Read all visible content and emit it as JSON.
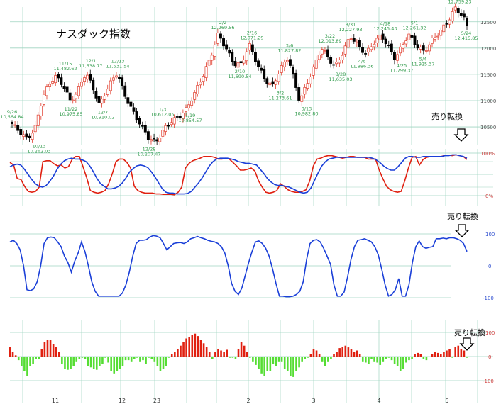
{
  "title": "ナスダック指数",
  "signals": {
    "panel1": "売り転換",
    "panel2": "売り転換",
    "panel3": "売り転換"
  },
  "colors": {
    "up": "#e03a2a",
    "down": "#000000",
    "red_line": "#e02010",
    "blue_line": "#1a3fd8",
    "grid": "#9fd4c0",
    "annotation": "#2f9a4a",
    "bar_pos": "#e02010",
    "bar_neg": "#55dd33"
  },
  "x_axis_labels": [
    "11",
    "12",
    "23",
    "2",
    "3",
    "4",
    "5"
  ],
  "chart_data": [
    {
      "type": "candlestick",
      "title": "ナスダック指数",
      "yticks": [
        12500,
        12000,
        11500,
        11000,
        10500
      ],
      "ylim": [
        10150,
        12780
      ],
      "annotations": [
        {
          "date": "9/26",
          "value": "10,564.84"
        },
        {
          "date": "10/13",
          "value": "10,262.03"
        },
        {
          "date": "11/15",
          "value": "11,482.62"
        },
        {
          "date": "11/22",
          "value": "10,975.85"
        },
        {
          "date": "12/1",
          "value": "11,538.77"
        },
        {
          "date": "12/7",
          "value": "10,910.02"
        },
        {
          "date": "12/13",
          "value": "11,531.54"
        },
        {
          "date": "12/28",
          "value": "10,207.47"
        },
        {
          "date": "1/3",
          "value": "10,612.05"
        },
        {
          "date": "1/19",
          "value": "10,854.57"
        },
        {
          "date": "2/2",
          "value": "12,269.56"
        },
        {
          "date": "2/16",
          "value": "12,071.29"
        },
        {
          "date": "2/10",
          "value": "11,690.54"
        },
        {
          "date": "3/6",
          "value": "11,827.82"
        },
        {
          "date": "3/2",
          "value": "11,273.61"
        },
        {
          "date": "3/13",
          "value": "10,982.80"
        },
        {
          "date": "3/22",
          "value": "12,013.89"
        },
        {
          "date": "3/28",
          "value": "11,635.03"
        },
        {
          "date": "3/31",
          "value": "12,227.93"
        },
        {
          "date": "4/6",
          "value": "11,886.36"
        },
        {
          "date": "4/18",
          "value": "12,245.43"
        },
        {
          "date": "4/25",
          "value": "11,799.37"
        },
        {
          "date": "5/1",
          "value": "12,261.32"
        },
        {
          "date": "5/4",
          "value": "11,925.37"
        },
        {
          "date": "5/22",
          "value": "12,759.23"
        },
        {
          "date": "5/24",
          "value": "12,415.85"
        }
      ]
    },
    {
      "type": "line",
      "yticks": [
        "100%",
        "0%"
      ],
      "ylim": [
        0,
        100
      ],
      "series": [
        {
          "color": "#e02010",
          "values": [
            78,
            72,
            40,
            38,
            22,
            10,
            8,
            10,
            20,
            80,
            82,
            82,
            75,
            70,
            72,
            65,
            68,
            85,
            92,
            92,
            68,
            42,
            12,
            8,
            6,
            8,
            12,
            28,
            52,
            80,
            86,
            86,
            78,
            65,
            22,
            12,
            8,
            6,
            6,
            6,
            4,
            4,
            3,
            3,
            3,
            2,
            8,
            20,
            65,
            76,
            82,
            85,
            88,
            92,
            92,
            92,
            90,
            86,
            86,
            88,
            86,
            78,
            70,
            60,
            60,
            62,
            65,
            58,
            35,
            20,
            8,
            6,
            8,
            12,
            28,
            22,
            14,
            10,
            8,
            8,
            10,
            14,
            35,
            70,
            86,
            88,
            92,
            94,
            94,
            92,
            90,
            88,
            90,
            92,
            92,
            90,
            90,
            90,
            86,
            86,
            86,
            60,
            40,
            22,
            14,
            10,
            8,
            10,
            35,
            65,
            90,
            92,
            72,
            85,
            90,
            92,
            92,
            92,
            92,
            95,
            95,
            94,
            96,
            94,
            92,
            85
          ]
        },
        {
          "color": "#1a3fd8",
          "values": [
            68,
            72,
            74,
            72,
            62,
            50,
            38,
            28,
            22,
            20,
            24,
            34,
            46,
            62,
            74,
            82,
            86,
            88,
            86,
            86,
            84,
            80,
            70,
            56,
            40,
            28,
            22,
            16,
            16,
            18,
            22,
            30,
            42,
            56,
            64,
            70,
            72,
            70,
            66,
            56,
            44,
            30,
            16,
            8,
            6,
            6,
            4,
            4,
            4,
            5,
            10,
            20,
            30,
            42,
            56,
            70,
            80,
            86,
            88,
            88,
            88,
            86,
            84,
            80,
            78,
            76,
            76,
            74,
            72,
            62,
            52,
            40,
            32,
            26,
            24,
            24,
            22,
            20,
            16,
            12,
            8,
            6,
            8,
            18,
            36,
            54,
            70,
            80,
            86,
            88,
            90,
            90,
            90,
            90,
            90,
            90,
            90,
            90,
            90,
            90,
            88,
            84,
            78,
            70,
            64,
            60,
            60,
            68,
            78,
            88,
            92,
            92,
            90,
            90,
            92,
            92,
            92,
            92,
            92,
            92,
            94,
            94,
            96,
            96,
            94,
            92,
            88
          ]
        }
      ]
    },
    {
      "type": "line",
      "yticks": [
        100,
        0,
        -100
      ],
      "ylim": [
        -100,
        100
      ],
      "series": [
        {
          "color": "#1a3fd8",
          "values": [
            75,
            80,
            70,
            50,
            0,
            -75,
            -78,
            -72,
            -50,
            0,
            70,
            88,
            90,
            88,
            75,
            60,
            30,
            10,
            -20,
            15,
            40,
            75,
            45,
            0,
            -50,
            -80,
            -95,
            -95,
            -95,
            -95,
            -95,
            -95,
            -95,
            -85,
            -60,
            -20,
            30,
            70,
            80,
            80,
            82,
            90,
            95,
            93,
            88,
            70,
            50,
            60,
            70,
            72,
            73,
            70,
            75,
            85,
            88,
            92,
            88,
            85,
            80,
            77,
            75,
            70,
            60,
            40,
            0,
            -55,
            -80,
            -90,
            -70,
            -30,
            10,
            45,
            75,
            78,
            70,
            55,
            30,
            -10,
            -55,
            -95,
            -95,
            -97,
            -97,
            -95,
            -90,
            -80,
            -50,
            20,
            70,
            80,
            82,
            75,
            55,
            30,
            5,
            -60,
            -95,
            -95,
            -82,
            -35,
            20,
            60,
            80,
            82,
            85,
            80,
            75,
            60,
            35,
            -10,
            -60,
            -95,
            -90,
            -75,
            -40,
            -95,
            -95,
            -60,
            10,
            60,
            78,
            60,
            55,
            58,
            60,
            85,
            85,
            87,
            85,
            88,
            88,
            85,
            80,
            70,
            45
          ]
        }
      ]
    },
    {
      "type": "bar",
      "yticks": [
        100,
        0,
        -100
      ],
      "ylim": [
        -100,
        100
      ],
      "values": [
        40,
        20,
        5,
        -15,
        -40,
        -60,
        -80,
        -40,
        -30,
        -10,
        -10,
        30,
        60,
        70,
        68,
        50,
        40,
        20,
        -30,
        -50,
        -55,
        -50,
        -40,
        -20,
        -10,
        -5,
        -10,
        -40,
        -45,
        -50,
        -55,
        -40,
        -30,
        -5,
        -25,
        -60,
        -70,
        -60,
        -50,
        -40,
        -15,
        -15,
        -20,
        -10,
        -5,
        -20,
        -15,
        -30,
        -5,
        -10,
        -20,
        -40,
        -60,
        -50,
        -40,
        -5,
        10,
        20,
        30,
        45,
        60,
        75,
        80,
        90,
        95,
        85,
        70,
        55,
        40,
        20,
        -10,
        20,
        30,
        25,
        20,
        28,
        -5,
        -5,
        -10,
        30,
        60,
        45,
        20,
        -5,
        -20,
        -35,
        -50,
        -70,
        -80,
        -60,
        -60,
        -30,
        -40,
        -20,
        -20,
        -50,
        -60,
        -80,
        -85,
        -60,
        -45,
        -20,
        -10,
        -5,
        10,
        30,
        25,
        10,
        -20,
        -40,
        -20,
        -10,
        10,
        20,
        35,
        40,
        45,
        38,
        30,
        20,
        25,
        10,
        -20,
        -25,
        -30,
        -10,
        -20,
        -25,
        -35,
        -20,
        -10,
        -5,
        -15,
        -30,
        -40,
        -60,
        -50,
        -25,
        -15,
        -10,
        10,
        15,
        10,
        -10,
        -15,
        0,
        10,
        20,
        15,
        10,
        20,
        25,
        30,
        -5,
        40,
        45,
        30,
        25,
        -5
      ]
    }
  ]
}
